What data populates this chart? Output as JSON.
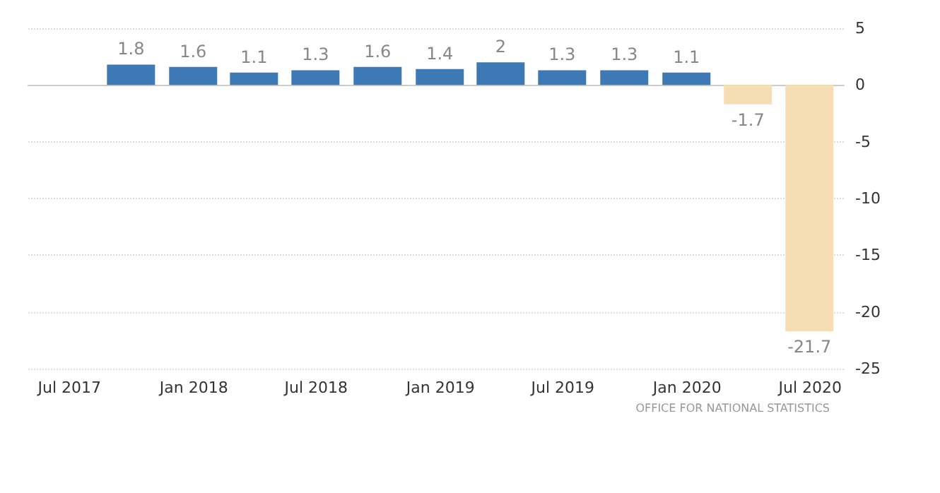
{
  "chart_data": {
    "type": "bar",
    "x": [
      "2017-09-30",
      "2017-12-31",
      "2018-03-31",
      "2018-06-30",
      "2018-09-30",
      "2018-12-31",
      "2019-03-31",
      "2019-06-30",
      "2019-09-30",
      "2019-12-31",
      "2020-03-31",
      "2020-06-30"
    ],
    "values": [
      1.8,
      1.6,
      1.1,
      1.3,
      1.6,
      1.4,
      2,
      1.3,
      1.3,
      1.1,
      -1.7,
      -21.7
    ],
    "colors": [
      "#3d7ab5",
      "#3d7ab5",
      "#3d7ab5",
      "#3d7ab5",
      "#3d7ab5",
      "#3d7ab5",
      "#3d7ab5",
      "#3d7ab5",
      "#3d7ab5",
      "#3d7ab5",
      "#f5deb3",
      "#f5deb3"
    ],
    "data_labels": true,
    "xlim": [
      "2017-05-01",
      "2020-08-20"
    ],
    "xticks": [
      {
        "value": "2017-07-01",
        "label": "Jul 2017"
      },
      {
        "value": "2018-01-01",
        "label": "Jan 2018"
      },
      {
        "value": "2018-07-01",
        "label": "Jul 2018"
      },
      {
        "value": "2019-01-01",
        "label": "Jan 2019"
      },
      {
        "value": "2019-07-01",
        "label": "Jul 2019"
      },
      {
        "value": "2020-01-01",
        "label": "Jan 2020"
      },
      {
        "value": "2020-07-01",
        "label": "Jul 2020"
      }
    ],
    "ylim": [
      -25,
      5
    ],
    "yticks": [
      5,
      0,
      -5,
      -10,
      -15,
      -20,
      -25
    ],
    "grid": "y",
    "annotations": [
      "OFFICE FOR NATIONAL STATISTICS"
    ]
  }
}
